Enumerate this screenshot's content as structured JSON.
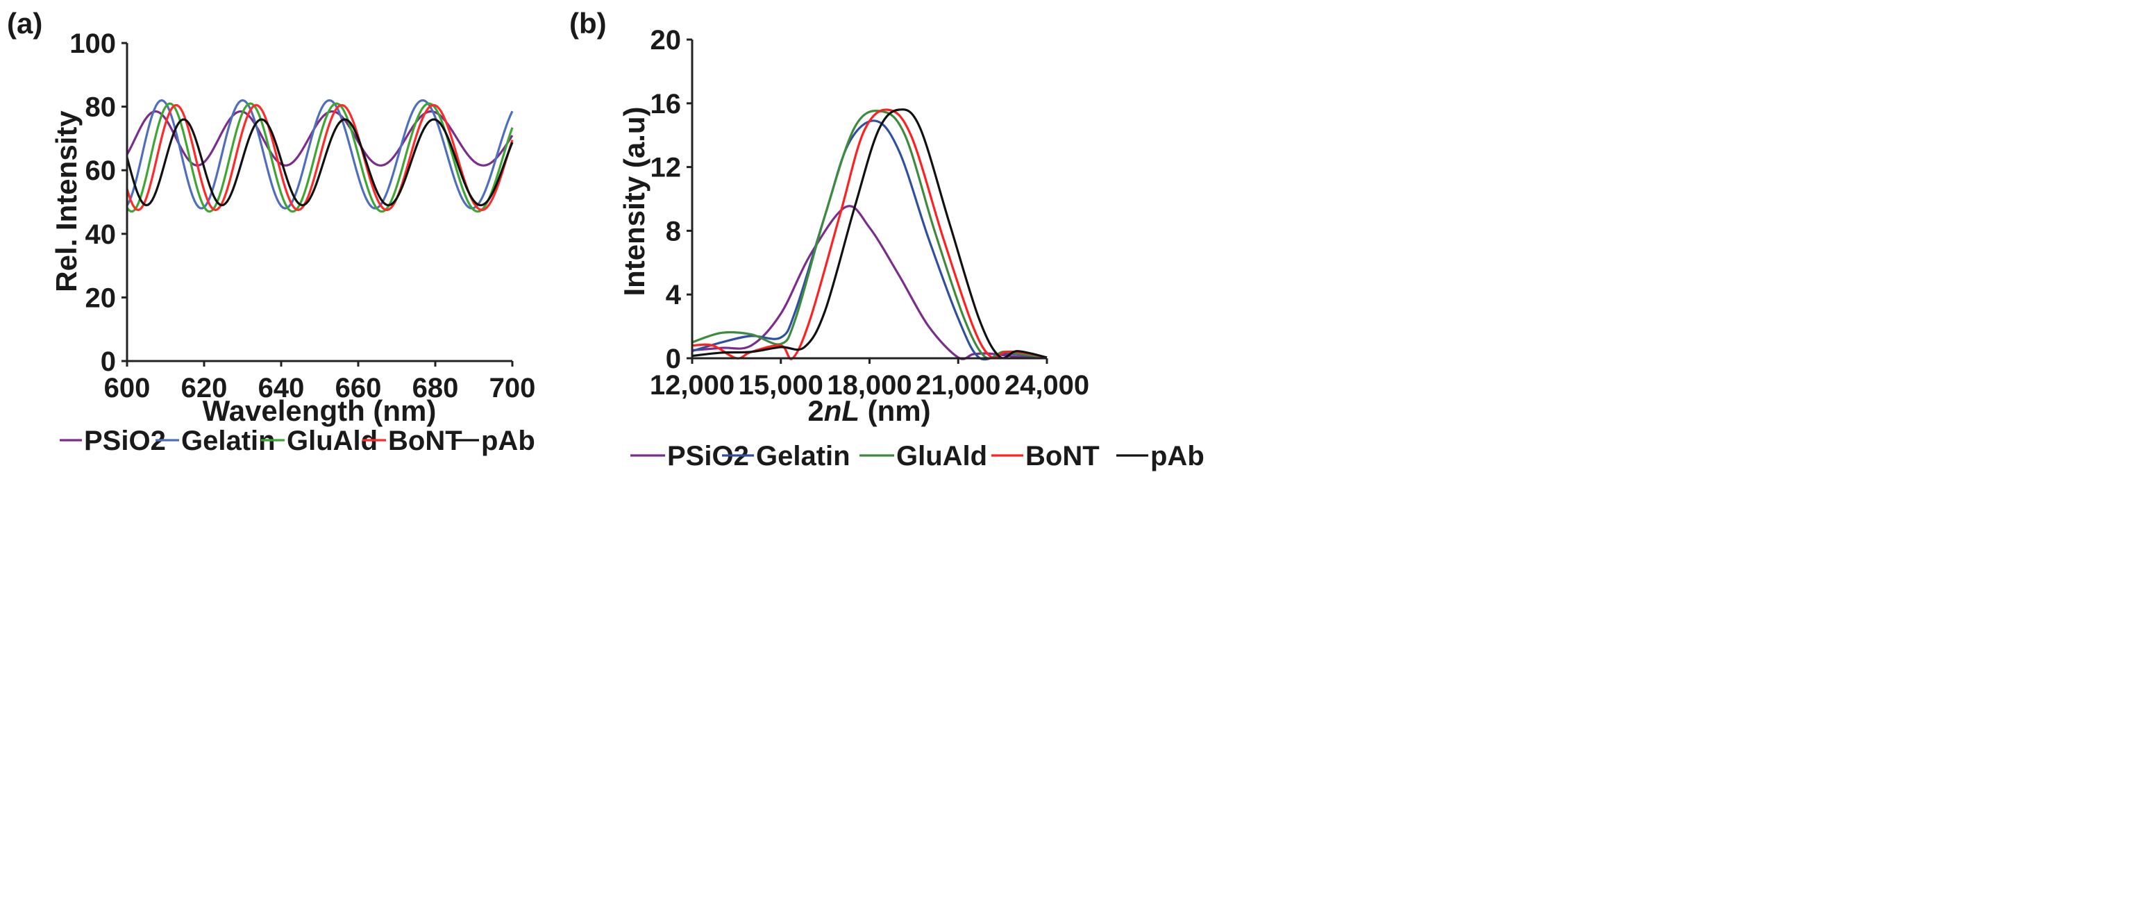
{
  "chart_data": [
    {
      "panel_label": "(a)",
      "type": "line",
      "title": "",
      "xlabel": "Wavelength (nm)",
      "ylabel": "Rel. Intensity",
      "xlim": [
        600,
        700
      ],
      "ylim": [
        0,
        100
      ],
      "xticks": [
        "600",
        "620",
        "640",
        "660",
        "680",
        "700"
      ],
      "xtick_values": [
        600,
        620,
        640,
        660,
        680,
        700
      ],
      "yticks": [
        "0",
        "20",
        "40",
        "60",
        "80",
        "100"
      ],
      "ytick_values": [
        0,
        20,
        40,
        60,
        80,
        100
      ],
      "grid": false,
      "legend_position": "bottom",
      "model": "I = mean + amplitude * cos(2*pi*two_nL*(1/lambda - 1/peak_wavelength))",
      "series": [
        {
          "name": "PSiO2",
          "color": "#7b2d8b",
          "two_nL": 17300,
          "mean": 70,
          "amplitude": 8.5,
          "peak_wavelength": 629.5
        },
        {
          "name": "Gelatin",
          "color": "#4f6fbd",
          "two_nL": 18250,
          "mean": 65,
          "amplitude": 17,
          "peak_wavelength": 630
        },
        {
          "name": "GluAld",
          "color": "#3fa535",
          "two_nL": 18500,
          "mean": 64,
          "amplitude": 17,
          "peak_wavelength": 632
        },
        {
          "name": "BoNT",
          "color": "#ff2a2a",
          "two_nL": 18700,
          "mean": 64,
          "amplitude": 16.5,
          "peak_wavelength": 633.5
        },
        {
          "name": "pAb",
          "color": "#111111",
          "two_nL": 19300,
          "mean": 62.5,
          "amplitude": 13.5,
          "peak_wavelength": 656.5
        }
      ]
    },
    {
      "panel_label": "(b)",
      "type": "line",
      "title": "",
      "xlabel_prefix": "2",
      "xlabel_italic": "nL",
      "xlabel_suffix": " (nm)",
      "ylabel": "Intensity (a.u)",
      "xlim": [
        12000,
        24000
      ],
      "ylim": [
        0,
        20
      ],
      "xticks": [
        "12,000",
        "15,000",
        "18,000",
        "21,000",
        "24,000"
      ],
      "xtick_values": [
        12000,
        15000,
        18000,
        21000,
        24000
      ],
      "yticks": [
        "0",
        "4",
        "8",
        "12",
        "16",
        "20"
      ],
      "ytick_values": [
        0,
        4,
        8,
        12,
        16,
        20
      ],
      "grid": false,
      "legend_position": "bottom",
      "series": [
        {
          "name": "PSiO2",
          "color": "#7b2d8b",
          "points": [
            [
              12000,
              0.5
            ],
            [
              13000,
              0.65
            ],
            [
              14000,
              0.8
            ],
            [
              15000,
              2.8
            ],
            [
              16000,
              6.5
            ],
            [
              17200,
              9.5
            ],
            [
              18000,
              8.2
            ],
            [
              19000,
              5.2
            ],
            [
              20000,
              2.0
            ],
            [
              21000,
              0.05
            ],
            [
              21500,
              0.25
            ],
            [
              22000,
              0.3
            ],
            [
              23000,
              0.1
            ],
            [
              24000,
              0.05
            ]
          ]
        },
        {
          "name": "Gelatin",
          "color": "#2f4f9f",
          "points": [
            [
              12000,
              0.45
            ],
            [
              13000,
              1.0
            ],
            [
              14000,
              1.4
            ],
            [
              15000,
              1.3
            ],
            [
              15500,
              3
            ],
            [
              16500,
              9
            ],
            [
              17300,
              13.5
            ],
            [
              18200,
              14.9
            ],
            [
              19000,
              13
            ],
            [
              20000,
              7.5
            ],
            [
              21000,
              2.5
            ],
            [
              21700,
              0.05
            ],
            [
              22500,
              0.3
            ],
            [
              23000,
              0.25
            ],
            [
              24000,
              0.05
            ]
          ]
        },
        {
          "name": "GluAld",
          "color": "#3d8b3d",
          "points": [
            [
              12000,
              1.0
            ],
            [
              13000,
              1.6
            ],
            [
              14000,
              1.5
            ],
            [
              15000,
              0.9
            ],
            [
              15500,
              2.5
            ],
            [
              16500,
              9
            ],
            [
              17500,
              14.5
            ],
            [
              18400,
              15.5
            ],
            [
              19200,
              14
            ],
            [
              20200,
              8
            ],
            [
              21200,
              2.5
            ],
            [
              21900,
              0.1
            ],
            [
              22500,
              0.4
            ],
            [
              23000,
              0.3
            ],
            [
              24000,
              0.05
            ]
          ]
        },
        {
          "name": "BoNT",
          "color": "#ff2020",
          "points": [
            [
              12000,
              0.8
            ],
            [
              12700,
              0.8
            ],
            [
              13500,
              0.0
            ],
            [
              14000,
              0.4
            ],
            [
              15000,
              0.8
            ],
            [
              15400,
              0.0
            ],
            [
              16000,
              2.5
            ],
            [
              17000,
              9
            ],
            [
              17800,
              14.2
            ],
            [
              18600,
              15.6
            ],
            [
              19400,
              14
            ],
            [
              20500,
              7.5
            ],
            [
              21500,
              2
            ],
            [
              22100,
              0.1
            ],
            [
              22600,
              0.4
            ],
            [
              23200,
              0.35
            ],
            [
              24000,
              0.05
            ]
          ]
        },
        {
          "name": "pAb",
          "color": "#111111",
          "points": [
            [
              12000,
              0.15
            ],
            [
              13000,
              0.35
            ],
            [
              14000,
              0.4
            ],
            [
              15000,
              0.7
            ],
            [
              15800,
              0.7
            ],
            [
              16500,
              3
            ],
            [
              17500,
              9.5
            ],
            [
              18300,
              14.3
            ],
            [
              19000,
              15.6
            ],
            [
              19700,
              14.5
            ],
            [
              20700,
              8.5
            ],
            [
              21700,
              2.5
            ],
            [
              22400,
              0.1
            ],
            [
              23000,
              0.45
            ],
            [
              24000,
              0.05
            ]
          ]
        }
      ]
    }
  ]
}
